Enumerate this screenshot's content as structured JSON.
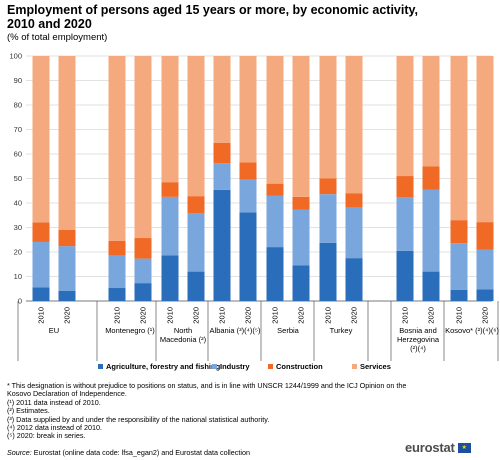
{
  "chart_data": {
    "type": "bar",
    "stacked": true,
    "title": "Employment of persons aged 15 years or more, by economic activity, 2010 and 2020",
    "subtitle": "(% of total employment)",
    "ylim": [
      0,
      100
    ],
    "yticks": [
      0,
      10,
      20,
      30,
      40,
      50,
      60,
      70,
      80,
      90,
      100
    ],
    "grid": true,
    "legend_position": "bottom",
    "groups": [
      {
        "label": "EU",
        "years": [
          "2010",
          "2020"
        ]
      },
      {
        "label": "Montenegro (¹)",
        "years": [
          "2010",
          "2020"
        ]
      },
      {
        "label": "North Macedonia (²)",
        "years": [
          "2010",
          "2020"
        ]
      },
      {
        "label": "Albania (³)(⁴)(⁵)",
        "years": [
          "2010",
          "2020"
        ]
      },
      {
        "label": "Serbia",
        "years": [
          "2010",
          "2020"
        ]
      },
      {
        "label": "Turkey",
        "years": [
          "2010",
          "2020"
        ]
      },
      {
        "label": "Bosnia and Herzegovina (²)(⁴)",
        "years": [
          "2010",
          "2020"
        ]
      },
      {
        "label": "Kosovo* (²)(⁴)(⁶)",
        "years": [
          "2010",
          "2020"
        ]
      }
    ],
    "series": [
      {
        "name": "Agriculture, forestry and fishing",
        "color": "#2a6ebb",
        "values": [
          [
            5.5,
            4.2
          ],
          [
            5.3,
            7.3
          ],
          [
            18.6,
            12.0
          ],
          [
            45.4,
            36.2
          ],
          [
            22.0,
            14.5
          ],
          [
            23.7,
            17.5
          ],
          [
            20.5,
            12.0
          ],
          [
            4.5,
            4.8
          ]
        ]
      },
      {
        "name": "Industry",
        "color": "#79a6dc",
        "values": [
          [
            18.6,
            18.2
          ],
          [
            13.3,
            10.0
          ],
          [
            23.9,
            23.9
          ],
          [
            10.8,
            13.3
          ],
          [
            20.9,
            22.7
          ],
          [
            19.9,
            20.7
          ],
          [
            21.8,
            33.5
          ],
          [
            19.1,
            16.2
          ]
        ]
      },
      {
        "name": "Construction",
        "color": "#f06a25",
        "values": [
          [
            8.0,
            6.7
          ],
          [
            6.0,
            8.4
          ],
          [
            6.0,
            6.9
          ],
          [
            8.4,
            7.1
          ],
          [
            5.0,
            5.3
          ],
          [
            6.4,
            5.8
          ],
          [
            8.7,
            9.4
          ],
          [
            9.4,
            11.2
          ]
        ]
      },
      {
        "name": "Services",
        "color": "#f5a97f",
        "values": [
          [
            67.9,
            70.9
          ],
          [
            75.4,
            74.3
          ],
          [
            51.5,
            57.2
          ],
          [
            35.4,
            43.4
          ],
          [
            52.1,
            57.5
          ],
          [
            50.0,
            56.0
          ],
          [
            49.0,
            45.1
          ],
          [
            67.0,
            67.8
          ]
        ]
      }
    ]
  },
  "footnotes": [
    "* This designation is without prejudice to positions on status, and is in line with UNSCR 1244/1999 and the ICJ Opinion on the Kosovo Declaration of Independence.",
    "(¹) 2011 data instead of 2010.",
    "(²) Estimates.",
    "(³) Data supplied by and under the responsibility of the national statistical authority.",
    "(⁴) 2012 data instead of 2010.",
    "(⁵) 2020: break in series."
  ],
  "source": {
    "label": "Source:",
    "text": " Eurostat (online data code: lfsa_egan2) and Eurostat data collection"
  },
  "logo": {
    "text": "eurostat",
    "flag_icon": "eu-flag-icon"
  }
}
